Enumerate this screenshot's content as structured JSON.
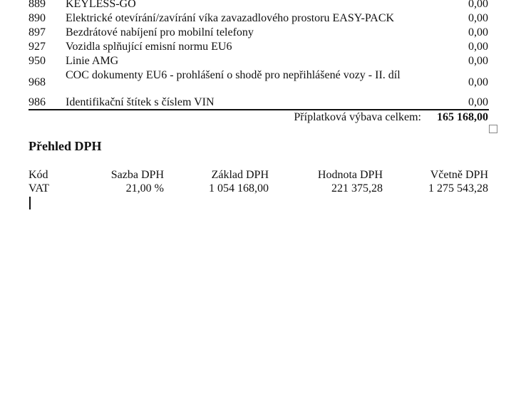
{
  "items": [
    {
      "code": "889",
      "description": "KEYLESS-GO",
      "price": "0,00"
    },
    {
      "code": "890",
      "description": "Elektrické otevírání/zavírání víka zavazadlového prostoru EASY-PACK",
      "price": "0,00"
    },
    {
      "code": "897",
      "description": "Bezdrátové nabíjení pro mobilní telefony",
      "price": "0,00"
    },
    {
      "code": "927",
      "description": "Vozidla splňující emisní normu EU6",
      "price": "0,00"
    },
    {
      "code": "950",
      "description": "Linie AMG",
      "price": "0,00"
    },
    {
      "code": "968",
      "description": "COC dokumenty EU6 - prohlášení o shodě pro nepřihlášené vozy - II. díl",
      "price": "0,00"
    },
    {
      "code": "986",
      "description": "Identifikační štítek s číslem VIN",
      "price": "0,00"
    }
  ],
  "total": {
    "label": "Příplatková výbava celkem:",
    "value": "165 168,00"
  },
  "vat": {
    "title": "Přehled DPH",
    "headers": [
      "Kód",
      "Sazba DPH",
      "Základ DPH",
      "Hodnota DPH",
      "Včetně DPH"
    ],
    "rows": [
      [
        "VAT",
        "21,00 %",
        "1 054 168,00",
        "221 375,28",
        "1 275 543,28"
      ]
    ]
  }
}
